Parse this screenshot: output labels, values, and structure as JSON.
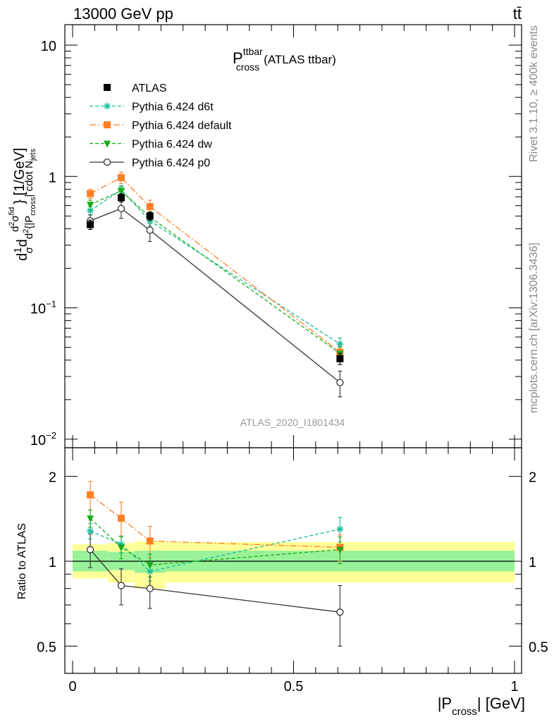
{
  "header": {
    "energy_label": "13000 GeV pp",
    "process_label": "tt̄",
    "side_rivet": "Rivet 3.1.10, ≥ 400k events",
    "side_mcplots": "mcplots.cern.ch [arXiv:1306.3436]",
    "analysis_id": "ATLAS_2020_I1801434"
  },
  "plot_title": {
    "main": "P",
    "sup": "ttbar",
    "sub": "cross",
    "suffix": "(ATLAS ttbar)"
  },
  "axes": {
    "ylabel_main": {
      "prefix": "d",
      "frac_num": "1",
      "frac_den": "σ",
      "d_before_bracket": "d",
      "d2": "d",
      "d2_exp": "2",
      "brace_open": "{|P",
      "cross_sub": "cross",
      "mid": "| cdot N",
      "jets_sub": "jets",
      "num_sigma": "d",
      "num_sigma_exp": "2",
      "num_sigma_sym": "σ",
      "num_sigma_sup": "fid",
      "brace_close": "} [1/GeV]"
    },
    "ylabel_ratio": "Ratio to ATLAS",
    "xlabel": {
      "open": "|P",
      "sub": "cross",
      "close": "| [GeV]"
    },
    "main_yticks": [
      {
        "label": "10",
        "exp": "",
        "value": 10
      },
      {
        "label": "1",
        "exp": "",
        "value": 1
      },
      {
        "label": "10",
        "exp": "−1",
        "value": 0.1
      },
      {
        "label": "10",
        "exp": "−2",
        "value": 0.01
      }
    ],
    "ratio_yticks": [
      {
        "label": "2",
        "value": 2
      },
      {
        "label": "1",
        "value": 1
      },
      {
        "label": "0.5",
        "value": 0.5
      }
    ],
    "xticks": [
      {
        "label": "0",
        "value": 0
      },
      {
        "label": "0.5",
        "value": 0.5
      },
      {
        "label": "1",
        "value": 1
      }
    ]
  },
  "chart_data": {
    "type": "line",
    "title": "P_cross^ttbar (ATLAS ttbar)",
    "xlabel": "|P_cross| [GeV]",
    "ylabel": "d(1/σ)dσ/d{|P_cross| cdot N_jets} [1/GeV]",
    "xlim": [
      0,
      1
    ],
    "ylim": [
      0.01,
      12
    ],
    "yscale": "log",
    "ratio_ylim": [
      0.4,
      2.3
    ],
    "ratio_yscale": "log",
    "legend_position": "top-left",
    "x": [
      0.04,
      0.11,
      0.175,
      0.605
    ],
    "bins": [
      [
        0.0,
        0.08
      ],
      [
        0.08,
        0.14
      ],
      [
        0.14,
        0.21
      ],
      [
        0.21,
        1.0
      ]
    ],
    "reference": {
      "name": "ATLAS",
      "color": "#000000",
      "values": [
        0.43,
        0.69,
        0.5,
        0.041
      ],
      "err": [
        0.035,
        0.05,
        0.035,
        0.004
      ],
      "ratio_band_inner": [
        [
          0.92,
          1.09
        ],
        [
          0.93,
          1.08
        ],
        [
          0.91,
          1.09
        ],
        [
          0.92,
          1.09
        ]
      ],
      "ratio_band_outer": [
        [
          0.87,
          1.15
        ],
        [
          0.84,
          1.16
        ],
        [
          0.8,
          1.18
        ],
        [
          0.84,
          1.17
        ]
      ]
    },
    "series": [
      {
        "name": "Pythia 6.424 d6t",
        "color": "#1abc9c",
        "dash": "5,3",
        "marker": "star",
        "values": [
          0.55,
          0.79,
          0.46,
          0.053
        ],
        "err": [
          0.04,
          0.06,
          0.04,
          0.006
        ],
        "ratio": [
          1.28,
          1.15,
          0.92,
          1.3
        ],
        "ratio_err": [
          0.08,
          0.08,
          0.07,
          0.13
        ]
      },
      {
        "name": "Pythia 6.424 default",
        "color": "#ff7f27",
        "dash": "9,3,2,3",
        "marker": "square",
        "values": [
          0.74,
          0.98,
          0.59,
          0.046
        ],
        "err": [
          0.06,
          0.1,
          0.07,
          0.005
        ],
        "ratio": [
          1.72,
          1.42,
          1.18,
          1.12
        ],
        "ratio_err": [
          0.2,
          0.2,
          0.15,
          0.12
        ]
      },
      {
        "name": "Pythia 6.424 dw",
        "color": "#1aaa1a",
        "dash": "5,3",
        "marker": "triangle-down",
        "values": [
          0.61,
          0.78,
          0.49,
          0.045
        ],
        "err": [
          0.05,
          0.06,
          0.05,
          0.005
        ],
        "ratio": [
          1.42,
          1.12,
          0.97,
          1.1
        ],
        "ratio_err": [
          0.1,
          0.1,
          0.09,
          0.12
        ]
      },
      {
        "name": "Pythia 6.424 p0",
        "color": "#333333",
        "dash": "",
        "marker": "circle-open",
        "values": [
          0.46,
          0.57,
          0.39,
          0.027
        ],
        "err": [
          0.05,
          0.09,
          0.07,
          0.006
        ],
        "ratio": [
          1.1,
          0.82,
          0.8,
          0.66
        ],
        "ratio_err": [
          0.15,
          0.12,
          0.12,
          0.16
        ]
      }
    ]
  }
}
